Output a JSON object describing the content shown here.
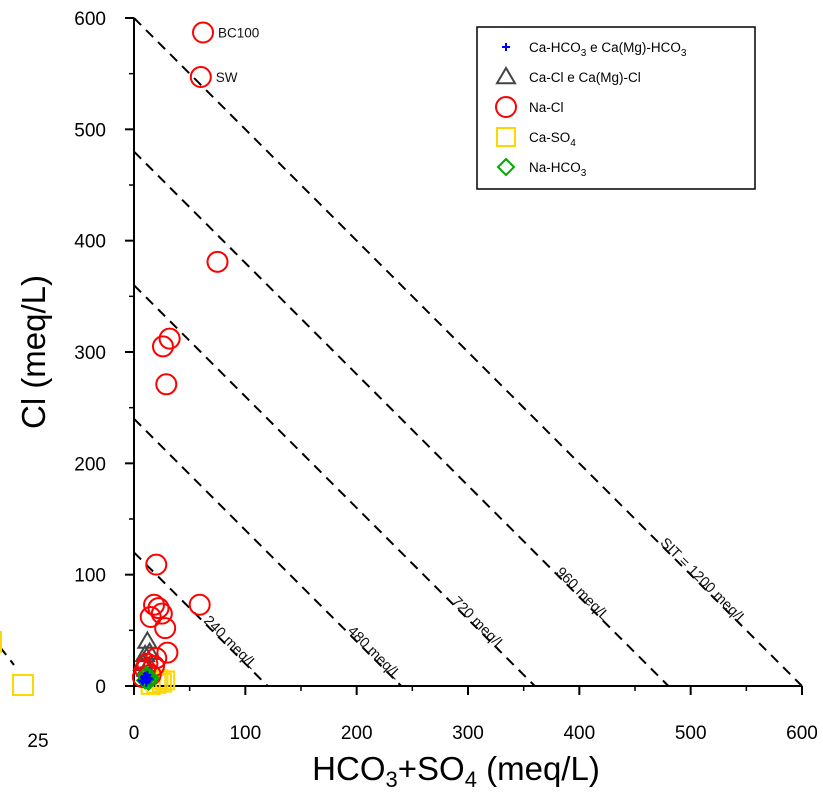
{
  "chart_data": {
    "type": "scatter",
    "xlabel": "HCO3+SO4 (meq/L)",
    "ylabel": "Cl (meq/L)",
    "xlim": [
      0,
      600
    ],
    "ylim": [
      0,
      600
    ],
    "x_ticks": [
      "0",
      "100",
      "200",
      "300",
      "400",
      "500",
      "600"
    ],
    "y_ticks": [
      "0",
      "100",
      "200",
      "300",
      "400",
      "500",
      "600"
    ],
    "grid": false,
    "legend_position": "top-right",
    "series": [
      {
        "name": "Ca-HCO3 e Ca(Mg)-HCO3",
        "marker": "plus",
        "color": "#0000ff",
        "points": [
          [
            8,
            4
          ],
          [
            10,
            6
          ],
          [
            12,
            5
          ],
          [
            9,
            8
          ],
          [
            11,
            3
          ],
          [
            13,
            7
          ],
          [
            7,
            5
          ],
          [
            10,
            9
          ],
          [
            14,
            6
          ],
          [
            12,
            10
          ]
        ]
      },
      {
        "name": "Ca-Cl e Ca(Mg)-Cl",
        "marker": "triangle",
        "color": "#444444",
        "points": [
          [
            12,
            40
          ],
          [
            10,
            28
          ],
          [
            8,
            20
          ],
          [
            14,
            30
          ],
          [
            11,
            15
          ],
          [
            9,
            22
          ]
        ]
      },
      {
        "name": "Na-Cl",
        "marker": "circle",
        "color": "#ff0000",
        "points": [
          [
            62,
            587
          ],
          [
            60,
            547
          ],
          [
            75,
            381
          ],
          [
            32,
            312
          ],
          [
            26,
            305
          ],
          [
            29,
            271
          ],
          [
            20,
            109
          ],
          [
            59,
            73
          ],
          [
            18,
            73
          ],
          [
            22,
            70
          ],
          [
            15,
            62
          ],
          [
            25,
            65
          ],
          [
            28,
            52
          ],
          [
            30,
            30
          ],
          [
            10,
            15
          ],
          [
            12,
            20
          ],
          [
            15,
            10
          ],
          [
            18,
            18
          ],
          [
            8,
            8
          ],
          [
            20,
            25
          ]
        ]
      },
      {
        "name": "Ca-SO4",
        "marker": "square",
        "color": "#ffd700",
        "points": [
          [
            20,
            2
          ],
          [
            25,
            3
          ],
          [
            28,
            5
          ],
          [
            15,
            1
          ],
          [
            22,
            6
          ]
        ]
      },
      {
        "name": "Na-HCO3",
        "marker": "diamond",
        "color": "#00aa00",
        "points": [
          [
            10,
            5
          ],
          [
            12,
            8
          ],
          [
            14,
            6
          ],
          [
            11,
            10
          ],
          [
            13,
            4
          ],
          [
            15,
            7
          ]
        ]
      }
    ],
    "isolines": [
      {
        "sit": 120,
        "label": "240 meq/L"
      },
      {
        "sit": 240,
        "label": "480 meq/L"
      },
      {
        "sit": 360,
        "label": "720 meq/L"
      },
      {
        "sit": 480,
        "label": "960 meq/L"
      },
      {
        "sit": 600,
        "label": "SIT = 1200 meq/L"
      }
    ],
    "annotations": [
      {
        "text": "BC100",
        "x": 62,
        "y": 587
      },
      {
        "text": "SW",
        "x": 60,
        "y": 547
      }
    ]
  },
  "left_panel": {
    "tick_label": "25",
    "partial_marker_color": "#ffd700"
  },
  "legend_labels": [
    {
      "text": "Ca-HCO",
      "sub": "3",
      "text2": " e Ca(Mg)-HCO",
      "sub2": "3"
    },
    {
      "text": "Ca-Cl e Ca(Mg)-Cl",
      "sub": "",
      "text2": "",
      "sub2": ""
    },
    {
      "text": "Na-Cl",
      "sub": "",
      "text2": "",
      "sub2": ""
    },
    {
      "text": "Ca-SO",
      "sub": "4",
      "text2": "",
      "sub2": ""
    },
    {
      "text": "Na-HCO",
      "sub": "3",
      "text2": "",
      "sub2": ""
    }
  ],
  "xlabel_parts": {
    "a": "HCO",
    "sub_a": "3",
    "b": "+SO",
    "sub_b": "4",
    "c": " (meq/L)"
  }
}
